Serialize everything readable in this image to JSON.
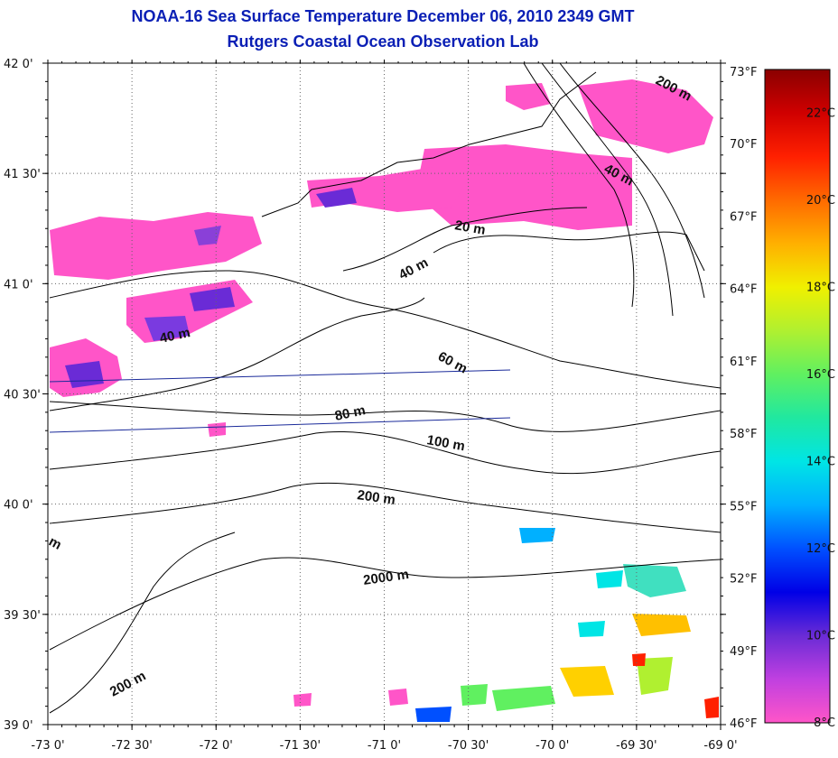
{
  "title": {
    "line1": "NOAA-16 Sea Surface Temperature December 06, 2010 2349 GMT",
    "line2": "Rutgers Coastal Ocean Observation Lab"
  },
  "map": {
    "lon_range": [
      -73.0,
      -69.0
    ],
    "lat_range": [
      39.0,
      42.0
    ],
    "lon_ticks": [
      "-73 0'",
      "-72 30'",
      "-72 0'",
      "-71 30'",
      "-71 0'",
      "-70 30'",
      "-70 0'",
      "-69 30'",
      "-69 0'"
    ],
    "lat_ticks": [
      "39 0'",
      "39 30'",
      "40 0'",
      "40 30'",
      "41 0'",
      "41 30'",
      "42 0'"
    ],
    "grid": true,
    "depth_labels": [
      "200 m",
      "40 m",
      "20 m",
      "40 m",
      "40 m",
      "60 m",
      "80 m",
      "100 m",
      "200 m",
      "2000 m",
      "200 m",
      "m"
    ],
    "colors": {
      "land_line": "#000000",
      "transect_line": "#1a2a9a",
      "title": "#0a1fb5"
    }
  },
  "colorbar": {
    "fahrenheit_labels": [
      "73°F",
      "70°F",
      "67°F",
      "64°F",
      "61°F",
      "58°F",
      "55°F",
      "52°F",
      "49°F",
      "46°F"
    ],
    "celsius_labels": [
      "22°C",
      "20°C",
      "18°C",
      "16°C",
      "14°C",
      "12°C",
      "10°C",
      "8°C"
    ],
    "range_c": [
      8,
      23
    ],
    "colors": [
      "#ff55c8",
      "#c040e0",
      "#6a2bd6",
      "#0000e6",
      "#0050ff",
      "#00b0ff",
      "#00e5e5",
      "#20e8a0",
      "#60f060",
      "#b0f030",
      "#f0f000",
      "#ffb000",
      "#ff6a00",
      "#ff2000",
      "#d00000",
      "#8a0000"
    ]
  }
}
